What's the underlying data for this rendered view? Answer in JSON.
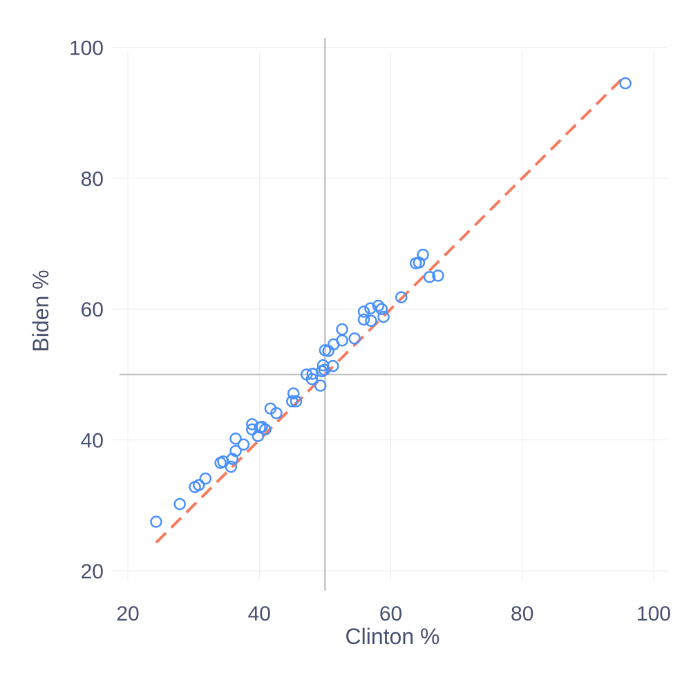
{
  "chart_data": {
    "type": "scatter",
    "xlabel": "Clinton %",
    "ylabel": "Biden %",
    "xlim": [
      18,
      102
    ],
    "ylim": [
      18,
      103
    ],
    "xticks": [
      20,
      40,
      60,
      80,
      100
    ],
    "yticks": [
      20,
      40,
      60,
      80,
      100
    ],
    "grid": true,
    "reference_lines": {
      "x": 50,
      "y": 50
    },
    "fit_line": {
      "x": [
        24.3,
        95.8
      ],
      "y": [
        24.3,
        95.8
      ],
      "style": "dashed"
    },
    "series": [
      {
        "points": [
          [
            24.3,
            27.5
          ],
          [
            27.9,
            30.2
          ],
          [
            30.2,
            32.8
          ],
          [
            30.8,
            33.1
          ],
          [
            31.8,
            34.1
          ],
          [
            34.1,
            36.5
          ],
          [
            34.5,
            36.7
          ],
          [
            35.7,
            35.9
          ],
          [
            35.9,
            37.1
          ],
          [
            36.4,
            38.3
          ],
          [
            36.4,
            40.2
          ],
          [
            37.6,
            39.3
          ],
          [
            38.9,
            41.6
          ],
          [
            38.9,
            42.4
          ],
          [
            39.8,
            40.6
          ],
          [
            40.1,
            41.9
          ],
          [
            40.4,
            42.0
          ],
          [
            40.9,
            41.6
          ],
          [
            41.7,
            44.8
          ],
          [
            42.6,
            44.1
          ],
          [
            45.0,
            45.9
          ],
          [
            45.2,
            47.1
          ],
          [
            45.6,
            45.9
          ],
          [
            47.2,
            50.0
          ],
          [
            48.0,
            49.3
          ],
          [
            48.1,
            50.1
          ],
          [
            49.3,
            48.3
          ],
          [
            49.5,
            50.5
          ],
          [
            49.7,
            51.4
          ],
          [
            49.9,
            50.7
          ],
          [
            50.0,
            53.7
          ],
          [
            50.5,
            53.6
          ],
          [
            51.2,
            51.3
          ],
          [
            51.3,
            54.6
          ],
          [
            52.6,
            56.9
          ],
          [
            52.6,
            55.2
          ],
          [
            54.5,
            55.5
          ],
          [
            55.9,
            58.4
          ],
          [
            55.9,
            59.6
          ],
          [
            56.9,
            60.1
          ],
          [
            57.0,
            58.2
          ],
          [
            58.1,
            60.5
          ],
          [
            58.6,
            60.0
          ],
          [
            58.9,
            58.8
          ],
          [
            61.6,
            61.8
          ],
          [
            63.8,
            67.0
          ],
          [
            64.3,
            67.1
          ],
          [
            64.9,
            68.3
          ],
          [
            65.9,
            64.9
          ],
          [
            67.2,
            65.1
          ],
          [
            95.7,
            94.5
          ]
        ]
      }
    ],
    "colors": {
      "points": "#4a90ff",
      "fit_line": "#f77a5f",
      "reference_lines": "#c4c4c4",
      "grid": "#ececec",
      "text": "#4a5070"
    }
  }
}
